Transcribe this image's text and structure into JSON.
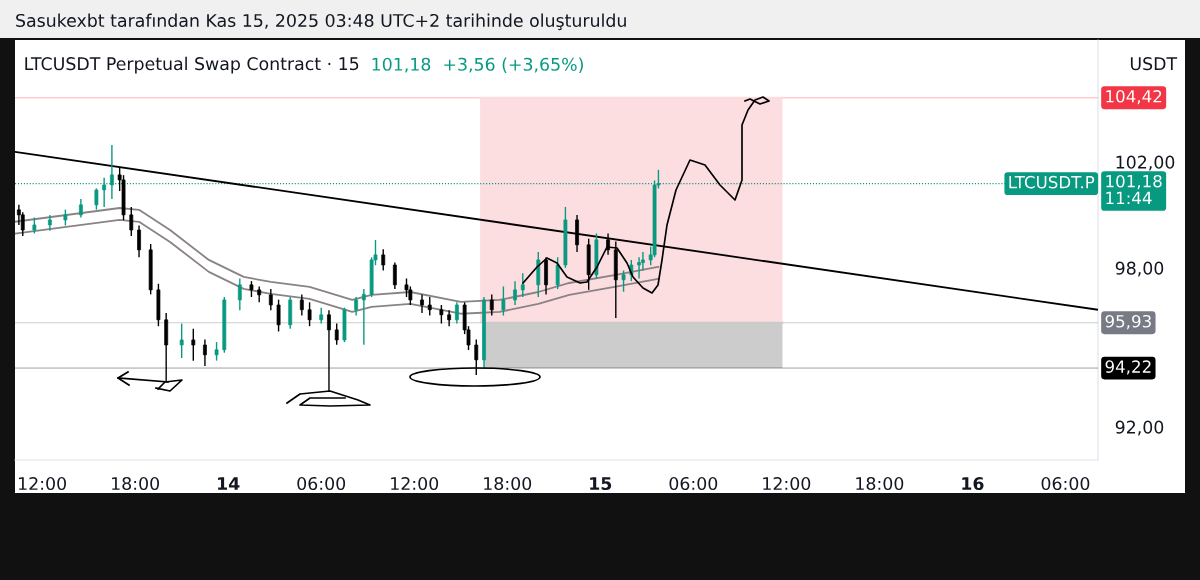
{
  "chart_data": {
    "type": "candlestick",
    "title": "LTCUSDT Perpetual Swap Contract · 15",
    "subtitle": "101,18  +3,56 (+3,65%)",
    "ylabel": "USDT",
    "annotations": [
      "Sasukexbt tarafından Kas 15, 2025 03:48 UTC+2 tarihinde oluşturuldu",
      "LTCUSDT.P"
    ],
    "x": [
      "2025-11-13T10:30",
      "2025-11-13T10:45",
      "2025-11-13T11:30",
      "2025-11-13T12:30",
      "2025-11-13T13:30",
      "2025-11-13T14:30",
      "2025-11-13T15:30",
      "2025-11-13T16:00",
      "2025-11-13T16:30",
      "2025-11-13T17:00",
      "2025-11-13T17:15",
      "2025-11-13T17:45",
      "2025-11-13T18:15",
      "2025-11-13T19:00",
      "2025-11-13T19:30",
      "2025-11-13T20:00",
      "2025-11-13T21:00",
      "2025-11-13T21:45",
      "2025-11-13T22:30",
      "2025-11-13T23:15",
      "2025-11-13T23:45",
      "2025-11-14T00:45",
      "2025-11-14T01:30",
      "2025-11-14T02:00",
      "2025-11-14T02:45",
      "2025-11-14T03:15",
      "2025-11-14T04:00",
      "2025-11-14T04:45",
      "2025-11-14T05:15",
      "2025-11-14T06:00",
      "2025-11-14T06:30",
      "2025-11-14T07:00",
      "2025-11-14T07:30",
      "2025-11-14T08:15",
      "2025-11-14T08:45",
      "2025-11-14T09:15",
      "2025-11-14T09:30",
      "2025-11-14T10:00",
      "2025-11-14T10:45",
      "2025-11-14T11:30",
      "2025-11-14T11:45",
      "2025-11-14T12:30",
      "2025-11-14T13:00",
      "2025-11-14T13:45",
      "2025-11-14T14:15",
      "2025-11-14T14:45",
      "2025-11-14T15:15",
      "2025-11-14T15:30",
      "2025-11-14T16:00",
      "2025-11-14T16:30",
      "2025-11-14T17:00",
      "2025-11-14T17:45",
      "2025-11-14T18:30",
      "2025-11-14T19:00",
      "2025-11-14T20:00",
      "2025-11-14T20:30",
      "2025-11-14T21:15",
      "2025-11-14T21:45",
      "2025-11-14T22:30",
      "2025-11-14T23:15",
      "2025-11-14T23:45",
      "2025-11-15T00:30",
      "2025-11-15T01:00",
      "2025-11-15T01:30",
      "2025-11-15T02:00",
      "2025-11-15T02:30",
      "2025-11-15T02:45",
      "2025-11-15T03:15",
      "2025-11-15T03:30",
      "2025-11-15T03:45"
    ],
    "ohlc": [
      [
        100.19,
        100.38,
        99.62,
        100.0
      ],
      [
        100.0,
        100.1,
        99.2,
        99.43
      ],
      [
        99.43,
        99.9,
        99.3,
        99.62
      ],
      [
        99.62,
        100.0,
        99.4,
        99.81
      ],
      [
        99.81,
        100.2,
        99.6,
        100.0
      ],
      [
        100.0,
        100.6,
        99.9,
        100.38
      ],
      [
        100.38,
        101.0,
        100.2,
        100.94
      ],
      [
        100.94,
        101.4,
        100.3,
        101.13
      ],
      [
        101.13,
        102.64,
        100.6,
        101.51
      ],
      [
        101.51,
        101.8,
        100.9,
        101.32
      ],
      [
        101.32,
        101.5,
        99.8,
        100.0
      ],
      [
        100.0,
        100.3,
        99.2,
        99.43
      ],
      [
        99.43,
        99.6,
        98.4,
        98.68
      ],
      [
        98.68,
        98.9,
        97.0,
        97.17
      ],
      [
        97.17,
        97.4,
        95.8,
        96.04
      ],
      [
        96.04,
        96.3,
        93.7,
        95.09
      ],
      [
        95.09,
        95.9,
        94.6,
        95.28
      ],
      [
        95.28,
        95.7,
        94.5,
        95.09
      ],
      [
        95.09,
        95.3,
        94.3,
        94.72
      ],
      [
        94.72,
        95.2,
        94.5,
        94.91
      ],
      [
        94.91,
        96.9,
        94.8,
        96.79
      ],
      [
        96.79,
        97.6,
        96.4,
        97.36
      ],
      [
        97.36,
        97.5,
        96.9,
        97.17
      ],
      [
        97.17,
        97.3,
        96.7,
        96.98
      ],
      [
        96.98,
        97.2,
        96.4,
        96.6
      ],
      [
        96.6,
        96.8,
        95.6,
        95.85
      ],
      [
        95.85,
        96.9,
        95.7,
        96.79
      ],
      [
        96.79,
        97.0,
        96.2,
        96.42
      ],
      [
        96.42,
        96.7,
        95.8,
        96.04
      ],
      [
        96.04,
        96.5,
        95.9,
        96.23
      ],
      [
        96.23,
        96.4,
        93.32,
        95.66
      ],
      [
        95.66,
        95.9,
        95.1,
        95.28
      ],
      [
        95.28,
        96.5,
        95.2,
        96.42
      ],
      [
        96.42,
        96.9,
        96.2,
        96.79
      ],
      [
        96.79,
        97.2,
        95.1,
        97.0
      ],
      [
        97.0,
        98.4,
        96.9,
        98.3
      ],
      [
        98.3,
        99.05,
        98.1,
        98.49
      ],
      [
        98.49,
        98.7,
        97.9,
        98.11
      ],
      [
        98.11,
        98.2,
        97.2,
        97.36
      ],
      [
        97.36,
        97.6,
        96.9,
        97.17
      ],
      [
        97.17,
        97.3,
        96.6,
        96.79
      ],
      [
        96.79,
        97.0,
        96.3,
        96.6
      ],
      [
        96.6,
        96.9,
        96.2,
        96.42
      ],
      [
        96.42,
        96.6,
        95.9,
        96.23
      ],
      [
        96.23,
        96.4,
        95.8,
        96.04
      ],
      [
        96.04,
        96.7,
        95.9,
        96.6
      ],
      [
        96.6,
        96.7,
        95.5,
        95.66
      ],
      [
        95.66,
        95.8,
        94.9,
        95.09
      ],
      [
        95.09,
        95.3,
        93.96,
        94.53
      ],
      [
        94.53,
        96.9,
        94.2,
        96.79
      ],
      [
        96.79,
        97.0,
        96.2,
        96.42
      ],
      [
        96.42,
        97.3,
        96.2,
        96.79
      ],
      [
        96.79,
        97.5,
        96.6,
        97.17
      ],
      [
        97.17,
        97.8,
        96.9,
        97.36
      ],
      [
        97.36,
        98.6,
        96.9,
        98.3
      ],
      [
        98.3,
        98.4,
        97.0,
        97.36
      ],
      [
        97.36,
        98.4,
        97.2,
        98.11
      ],
      [
        98.11,
        100.3,
        98.0,
        99.81
      ],
      [
        99.81,
        100.0,
        98.6,
        98.87
      ],
      [
        98.87,
        99.1,
        97.17,
        97.74
      ],
      [
        97.74,
        99.3,
        97.6,
        99.06
      ],
      [
        99.06,
        99.3,
        98.5,
        98.68
      ],
      [
        98.68,
        99.0,
        96.11,
        97.55
      ],
      [
        97.55,
        97.9,
        97.1,
        97.74
      ],
      [
        97.74,
        98.3,
        97.5,
        98.11
      ],
      [
        98.11,
        98.4,
        97.6,
        98.2
      ],
      [
        98.2,
        98.6,
        97.9,
        98.3
      ],
      [
        98.3,
        98.8,
        98.1,
        98.49
      ],
      [
        98.49,
        101.3,
        98.4,
        101.13
      ],
      [
        101.13,
        101.7,
        101.0,
        101.18
      ]
    ],
    "colors": [
      "#000000",
      "#000000",
      "#089981",
      "#089981",
      "#089981",
      "#089981",
      "#089981",
      "#089981",
      "#089981",
      "#000000",
      "#000000",
      "#000000",
      "#000000",
      "#000000",
      "#000000",
      "#000000",
      "#089981",
      "#000000",
      "#000000",
      "#089981",
      "#089981",
      "#089981",
      "#000000",
      "#000000",
      "#000000",
      "#000000",
      "#089981",
      "#000000",
      "#000000",
      "#089981",
      "#000000",
      "#000000",
      "#089981",
      "#089981",
      "#089981",
      "#089981",
      "#089981",
      "#000000",
      "#000000",
      "#000000",
      "#000000",
      "#000000",
      "#000000",
      "#000000",
      "#000000",
      "#089981",
      "#000000",
      "#000000",
      "#000000",
      "#089981",
      "#000000",
      "#089981",
      "#089981",
      "#089981",
      "#089981",
      "#000000",
      "#089981",
      "#089981",
      "#000000",
      "#000000",
      "#089981",
      "#000000",
      "#000000",
      "#089981",
      "#089981",
      "#089981",
      "#089981",
      "#089981",
      "#089981",
      "#089981"
    ],
    "series": [
      {
        "type": "line",
        "x": [
          "2025-11-14T16:15",
          "2025-11-15T11:45"
        ],
        "values": [
          104.42,
          104.42
        ],
        "lower": [
          95.93,
          95.93
        ],
        "upper": [
          104.42,
          104.42
        ],
        "color": "#fcdde0"
      },
      {
        "type": "line",
        "x": [
          "2025-11-14T16:30",
          "2025-11-15T11:45"
        ],
        "values": [
          95.93,
          95.93
        ],
        "lower": [
          94.22,
          94.22
        ],
        "upper": [
          95.93,
          95.93
        ],
        "color": "#cccccc"
      },
      {
        "type": "line",
        "x": [
          "2025-11-13T10:15",
          "2025-11-16T08:06"
        ],
        "values": [
          102.38,
          96.42
        ],
        "color": "#000000"
      },
      {
        "type": "line",
        "x": [
          "2025-11-13T10:15",
          "2025-11-13T17:00",
          "2025-11-13T18:15",
          "2025-11-13T20:15",
          "2025-11-13T22:45",
          "2025-11-14T01:00",
          "2025-11-14T02:45",
          "2025-11-14T05:15",
          "2025-11-14T08:00",
          "2025-11-14T09:15",
          "2025-11-14T11:45",
          "2025-11-14T15:00",
          "2025-11-14T17:30",
          "2025-11-14T20:00",
          "2025-11-14T22:00",
          "2025-11-15T01:00",
          "2025-11-15T03:45"
        ],
        "values": [
          99.74,
          100.26,
          100.19,
          99.43,
          98.3,
          97.66,
          97.47,
          97.28,
          96.79,
          96.98,
          97.09,
          96.72,
          96.79,
          97.09,
          97.43,
          97.74,
          98.04
        ],
        "color": "#8a8386"
      },
      {
        "type": "line",
        "x": [
          "2025-11-13T10:15",
          "2025-11-13T17:00",
          "2025-11-13T18:15",
          "2025-11-13T20:15",
          "2025-11-13T22:45",
          "2025-11-14T01:00",
          "2025-11-14T02:45",
          "2025-11-14T05:15",
          "2025-11-14T08:00",
          "2025-11-14T09:15",
          "2025-11-14T11:45",
          "2025-11-14T15:00",
          "2025-11-14T17:30",
          "2025-11-14T20:00",
          "2025-11-14T22:00",
          "2025-11-15T01:00",
          "2025-11-15T03:45"
        ],
        "values": [
          99.29,
          99.81,
          99.74,
          98.98,
          97.85,
          97.21,
          97.02,
          96.83,
          96.34,
          96.53,
          96.64,
          96.27,
          96.34,
          96.64,
          96.98,
          97.29,
          97.59
        ],
        "color": "#8a8386"
      }
    ],
    "xlim": [
      "2025-11-13T10:15",
      "2025-11-16T08:06"
    ],
    "xticks": [
      {
        "value": "2025-11-13T12:00",
        "label": "12:00"
      },
      {
        "value": "2025-11-13T18:00",
        "label": "18:00"
      },
      {
        "value": "2025-11-14T00:00",
        "label": "14"
      },
      {
        "value": "2025-11-14T06:00",
        "label": "06:00"
      },
      {
        "value": "2025-11-14T12:00",
        "label": "12:00"
      },
      {
        "value": "2025-11-14T18:00",
        "label": "18:00"
      },
      {
        "value": "2025-11-15T00:00",
        "label": "15"
      },
      {
        "value": "2025-11-15T06:00",
        "label": "06:00"
      },
      {
        "value": "2025-11-15T12:00",
        "label": "12:00"
      },
      {
        "value": "2025-11-15T18:00",
        "label": "18:00"
      },
      {
        "value": "2025-11-16T00:00",
        "label": "16"
      },
      {
        "value": "2025-11-16T06:00",
        "label": "06:00"
      }
    ],
    "ylim": [
      90.75,
      106.6
    ],
    "yticks": [
      {
        "value": 92,
        "label": "92,00"
      },
      {
        "value": 98,
        "label": "98,00"
      },
      {
        "value": 102,
        "label": "102,00"
      }
    ],
    "ref_lines": [
      {
        "axis": "y",
        "value": 104.42,
        "label": "104,42",
        "color": "#f23645",
        "line_style": "solid"
      },
      {
        "axis": "y",
        "value": 101.18,
        "label": "101,18\n11:44",
        "color": "#089981",
        "line_style": "dotted"
      },
      {
        "axis": "y",
        "value": 95.93,
        "label": "95,93",
        "color": "#787b86",
        "line_style": "solid"
      },
      {
        "axis": "y",
        "value": 94.22,
        "label": "94,22",
        "color": "#000000",
        "line_style": "solid"
      }
    ]
  }
}
